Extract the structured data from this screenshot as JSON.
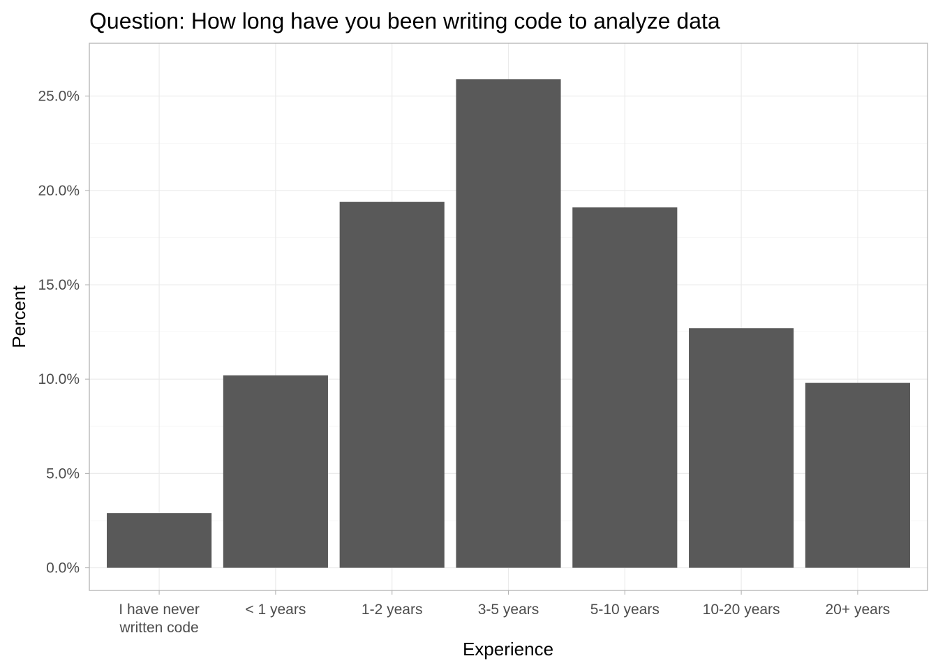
{
  "chart_data": {
    "type": "bar",
    "title": "Question: How long have you been writing code to analyze data",
    "xlabel": "Experience",
    "ylabel": "Percent",
    "categories": [
      [
        "I have never",
        "written code"
      ],
      [
        "< 1 years"
      ],
      [
        "1-2 years"
      ],
      [
        "3-5 years"
      ],
      [
        "5-10 years"
      ],
      [
        "10-20 years"
      ],
      [
        "20+ years"
      ]
    ],
    "values": [
      2.9,
      10.2,
      19.4,
      25.9,
      19.1,
      12.7,
      9.8
    ],
    "ylim": [
      -1.2,
      27.8
    ],
    "yticks": [
      0,
      5,
      10,
      15,
      20,
      25
    ],
    "ytick_labels": [
      "0.0%",
      "5.0%",
      "10.0%",
      "15.0%",
      "20.0%",
      "25.0%"
    ],
    "grid": true,
    "legend": "none",
    "colors": {
      "bar": "#595959",
      "grid_major": "#ebebeb",
      "grid_minor": "#f4f4f4",
      "border": "#b3b3b3",
      "tick_text": "#4d4d4d"
    }
  }
}
